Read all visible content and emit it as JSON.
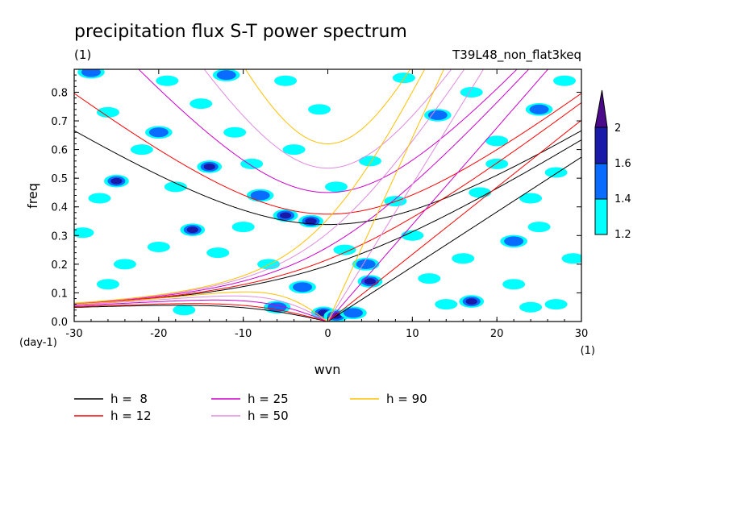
{
  "chart_data": {
    "type": "heatmap",
    "title": "precipitation flux S-T power spectrum",
    "subtitle_left": "(1)",
    "subtitle_right": "T39L48_non_flat3keq",
    "xlabel": "wvn",
    "ylabel": "freq",
    "x_unit": "(1)",
    "y_unit": "(day-1)",
    "xlim": [
      -30,
      30
    ],
    "ylim": [
      0,
      0.88
    ],
    "xticks": [
      -30,
      -20,
      -10,
      0,
      10,
      20,
      30
    ],
    "xtick_labels": [
      "-30",
      "-20",
      "-10",
      "0",
      "10",
      "20",
      "30"
    ],
    "yticks": [
      0,
      0.1,
      0.2,
      0.3,
      0.4,
      0.5,
      0.6,
      0.7,
      0.8
    ],
    "ytick_labels": [
      "0.0",
      "0.1",
      "0.2",
      "0.3",
      "0.4",
      "0.5",
      "0.6",
      "0.7",
      "0.8"
    ],
    "colorbar": {
      "levels": [
        1.2,
        1.4,
        1.6,
        2
      ],
      "labels": [
        "1.2",
        "1.4",
        "1.6",
        "2"
      ],
      "colors": [
        "#00ffff",
        "#0a6bff",
        "#1a1aa8",
        "#4a0a8a"
      ]
    },
    "fill_colors": {
      "low": "#00ffff",
      "mid": "#0a6bff",
      "high": "#1a1aa8"
    },
    "blobs": [
      {
        "x": -0.5,
        "y": 0.03,
        "level": "high"
      },
      {
        "x": 1,
        "y": 0.02,
        "level": "high"
      },
      {
        "x": -2,
        "y": 0.35,
        "level": "high"
      },
      {
        "x": -5,
        "y": 0.37,
        "level": "high"
      },
      {
        "x": 5,
        "y": 0.14,
        "level": "high"
      },
      {
        "x": 4.5,
        "y": 0.2,
        "level": "mid"
      },
      {
        "x": -25,
        "y": 0.49,
        "level": "high"
      },
      {
        "x": -14,
        "y": 0.54,
        "level": "high"
      },
      {
        "x": -16,
        "y": 0.32,
        "level": "high"
      },
      {
        "x": -8,
        "y": 0.44,
        "level": "mid"
      },
      {
        "x": 17,
        "y": 0.07,
        "level": "high"
      },
      {
        "x": -3,
        "y": 0.12,
        "level": "mid"
      },
      {
        "x": -20,
        "y": 0.66,
        "level": "mid"
      },
      {
        "x": -28,
        "y": 0.87,
        "level": "mid"
      },
      {
        "x": 25,
        "y": 0.74,
        "level": "mid"
      },
      {
        "x": 13,
        "y": 0.72,
        "level": "mid"
      },
      {
        "x": -12,
        "y": 0.86,
        "level": "mid"
      },
      {
        "x": 3,
        "y": 0.03,
        "level": "mid"
      },
      {
        "x": -6,
        "y": 0.05,
        "level": "mid"
      },
      {
        "x": 22,
        "y": 0.28,
        "level": "mid"
      },
      {
        "x": -26,
        "y": 0.13,
        "level": "low"
      },
      {
        "x": -17,
        "y": 0.04,
        "level": "low"
      },
      {
        "x": 24,
        "y": 0.05,
        "level": "low"
      },
      {
        "x": 27,
        "y": 0.06,
        "level": "low"
      },
      {
        "x": 14,
        "y": 0.06,
        "level": "low"
      },
      {
        "x": -24,
        "y": 0.2,
        "level": "low"
      },
      {
        "x": -13,
        "y": 0.24,
        "level": "low"
      },
      {
        "x": -7,
        "y": 0.2,
        "level": "low"
      },
      {
        "x": 10,
        "y": 0.3,
        "level": "low"
      },
      {
        "x": 16,
        "y": 0.22,
        "level": "low"
      },
      {
        "x": 25,
        "y": 0.33,
        "level": "low"
      },
      {
        "x": -27,
        "y": 0.43,
        "level": "low"
      },
      {
        "x": -18,
        "y": 0.47,
        "level": "low"
      },
      {
        "x": -9,
        "y": 0.55,
        "level": "low"
      },
      {
        "x": 8,
        "y": 0.42,
        "level": "low"
      },
      {
        "x": 18,
        "y": 0.45,
        "level": "low"
      },
      {
        "x": 27,
        "y": 0.52,
        "level": "low"
      },
      {
        "x": -22,
        "y": 0.6,
        "level": "low"
      },
      {
        "x": -4,
        "y": 0.6,
        "level": "low"
      },
      {
        "x": 5,
        "y": 0.56,
        "level": "low"
      },
      {
        "x": 20,
        "y": 0.63,
        "level": "low"
      },
      {
        "x": -26,
        "y": 0.73,
        "level": "low"
      },
      {
        "x": -15,
        "y": 0.76,
        "level": "low"
      },
      {
        "x": -1,
        "y": 0.74,
        "level": "low"
      },
      {
        "x": 17,
        "y": 0.8,
        "level": "low"
      },
      {
        "x": -19,
        "y": 0.84,
        "level": "low"
      },
      {
        "x": 9,
        "y": 0.85,
        "level": "low"
      },
      {
        "x": 28,
        "y": 0.84,
        "level": "low"
      },
      {
        "x": -29,
        "y": 0.31,
        "level": "low"
      },
      {
        "x": 29,
        "y": 0.22,
        "level": "low"
      },
      {
        "x": -10,
        "y": 0.33,
        "level": "low"
      },
      {
        "x": 2,
        "y": 0.25,
        "level": "low"
      },
      {
        "x": 12,
        "y": 0.15,
        "level": "low"
      },
      {
        "x": -20,
        "y": 0.26,
        "level": "low"
      },
      {
        "x": 20,
        "y": 0.55,
        "level": "low"
      },
      {
        "x": -11,
        "y": 0.66,
        "level": "low"
      },
      {
        "x": 1,
        "y": 0.47,
        "level": "low"
      },
      {
        "x": 24,
        "y": 0.43,
        "level": "low"
      },
      {
        "x": -5,
        "y": 0.84,
        "level": "low"
      },
      {
        "x": 22,
        "y": 0.13,
        "level": "low"
      }
    ],
    "series": [
      {
        "name": "h =  8",
        "h": 8,
        "color": "#000000"
      },
      {
        "name": "h = 12",
        "h": 12,
        "color": "#ff0000"
      },
      {
        "name": "h = 25",
        "h": 25,
        "color": "#cc00cc"
      },
      {
        "name": "h = 50",
        "h": 50,
        "color": "#e08ae0"
      },
      {
        "name": "h = 90",
        "h": 90,
        "color": "#ffc000"
      }
    ]
  }
}
